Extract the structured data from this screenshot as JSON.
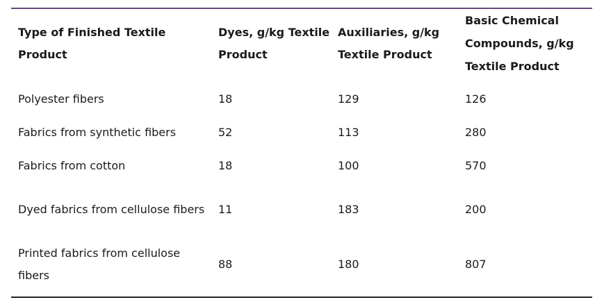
{
  "table": {
    "headers": [
      "Type of Finished Textile Product",
      "Dyes, g/kg Textile Product",
      "Auxiliaries, g/kg Textile Product",
      "Basic Chemical Compounds, g/kg Textile Product"
    ],
    "rows": [
      [
        "Polyester fibers",
        "18",
        "129",
        "126"
      ],
      [
        "Fabrics from synthetic fibers",
        "52",
        "113",
        "280"
      ],
      [
        "Fabrics from cotton",
        "18",
        "100",
        "570"
      ],
      [
        "Dyed fabrics from cellulose fibers",
        "11",
        "183",
        "200"
      ],
      [
        "Printed fabrics from cellulose fibers",
        "88",
        "180",
        "807"
      ]
    ]
  },
  "colors": {
    "top_rule": "#6a4a7a",
    "bottom_rule": "#222222",
    "text": "#1a1a1a"
  }
}
